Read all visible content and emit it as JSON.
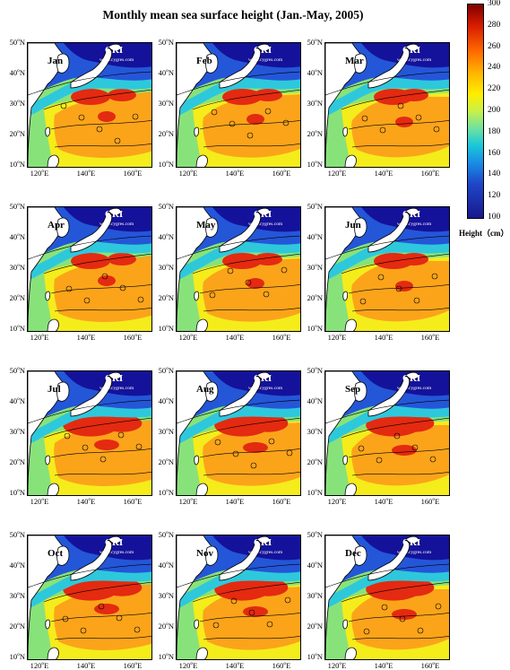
{
  "title": "Monthly mean sea surface height (Jan.-May, 2005)",
  "watermark": {
    "brand": "CRI",
    "url": "www.cygres.com"
  },
  "lat_labels": [
    "50",
    "40",
    "30",
    "20",
    "10"
  ],
  "lat_suffix": "N",
  "lon_labels": [
    "120",
    "140",
    "160"
  ],
  "lon_suffix": "E",
  "degree_sup": "o",
  "months": [
    "Jan",
    "Feb",
    "Mar",
    "Apr",
    "May",
    "Jun",
    "Jul",
    "Aug",
    "Sep",
    "Oct",
    "Nov",
    "Dec"
  ],
  "colorbar": {
    "ticks": [
      "300",
      "280",
      "260",
      "240",
      "220",
      "200",
      "180",
      "160",
      "140",
      "120",
      "100"
    ],
    "label": "Height（cm）",
    "range": [
      100,
      300
    ]
  },
  "colors": {
    "land": "#ffffff",
    "deep_blue": "#14129a",
    "blue": "#2456d8",
    "cyan": "#2ec8dc",
    "green": "#88e27a",
    "yellow": "#f5ec1c",
    "orange": "#fba41a",
    "red": "#e42a10"
  }
}
